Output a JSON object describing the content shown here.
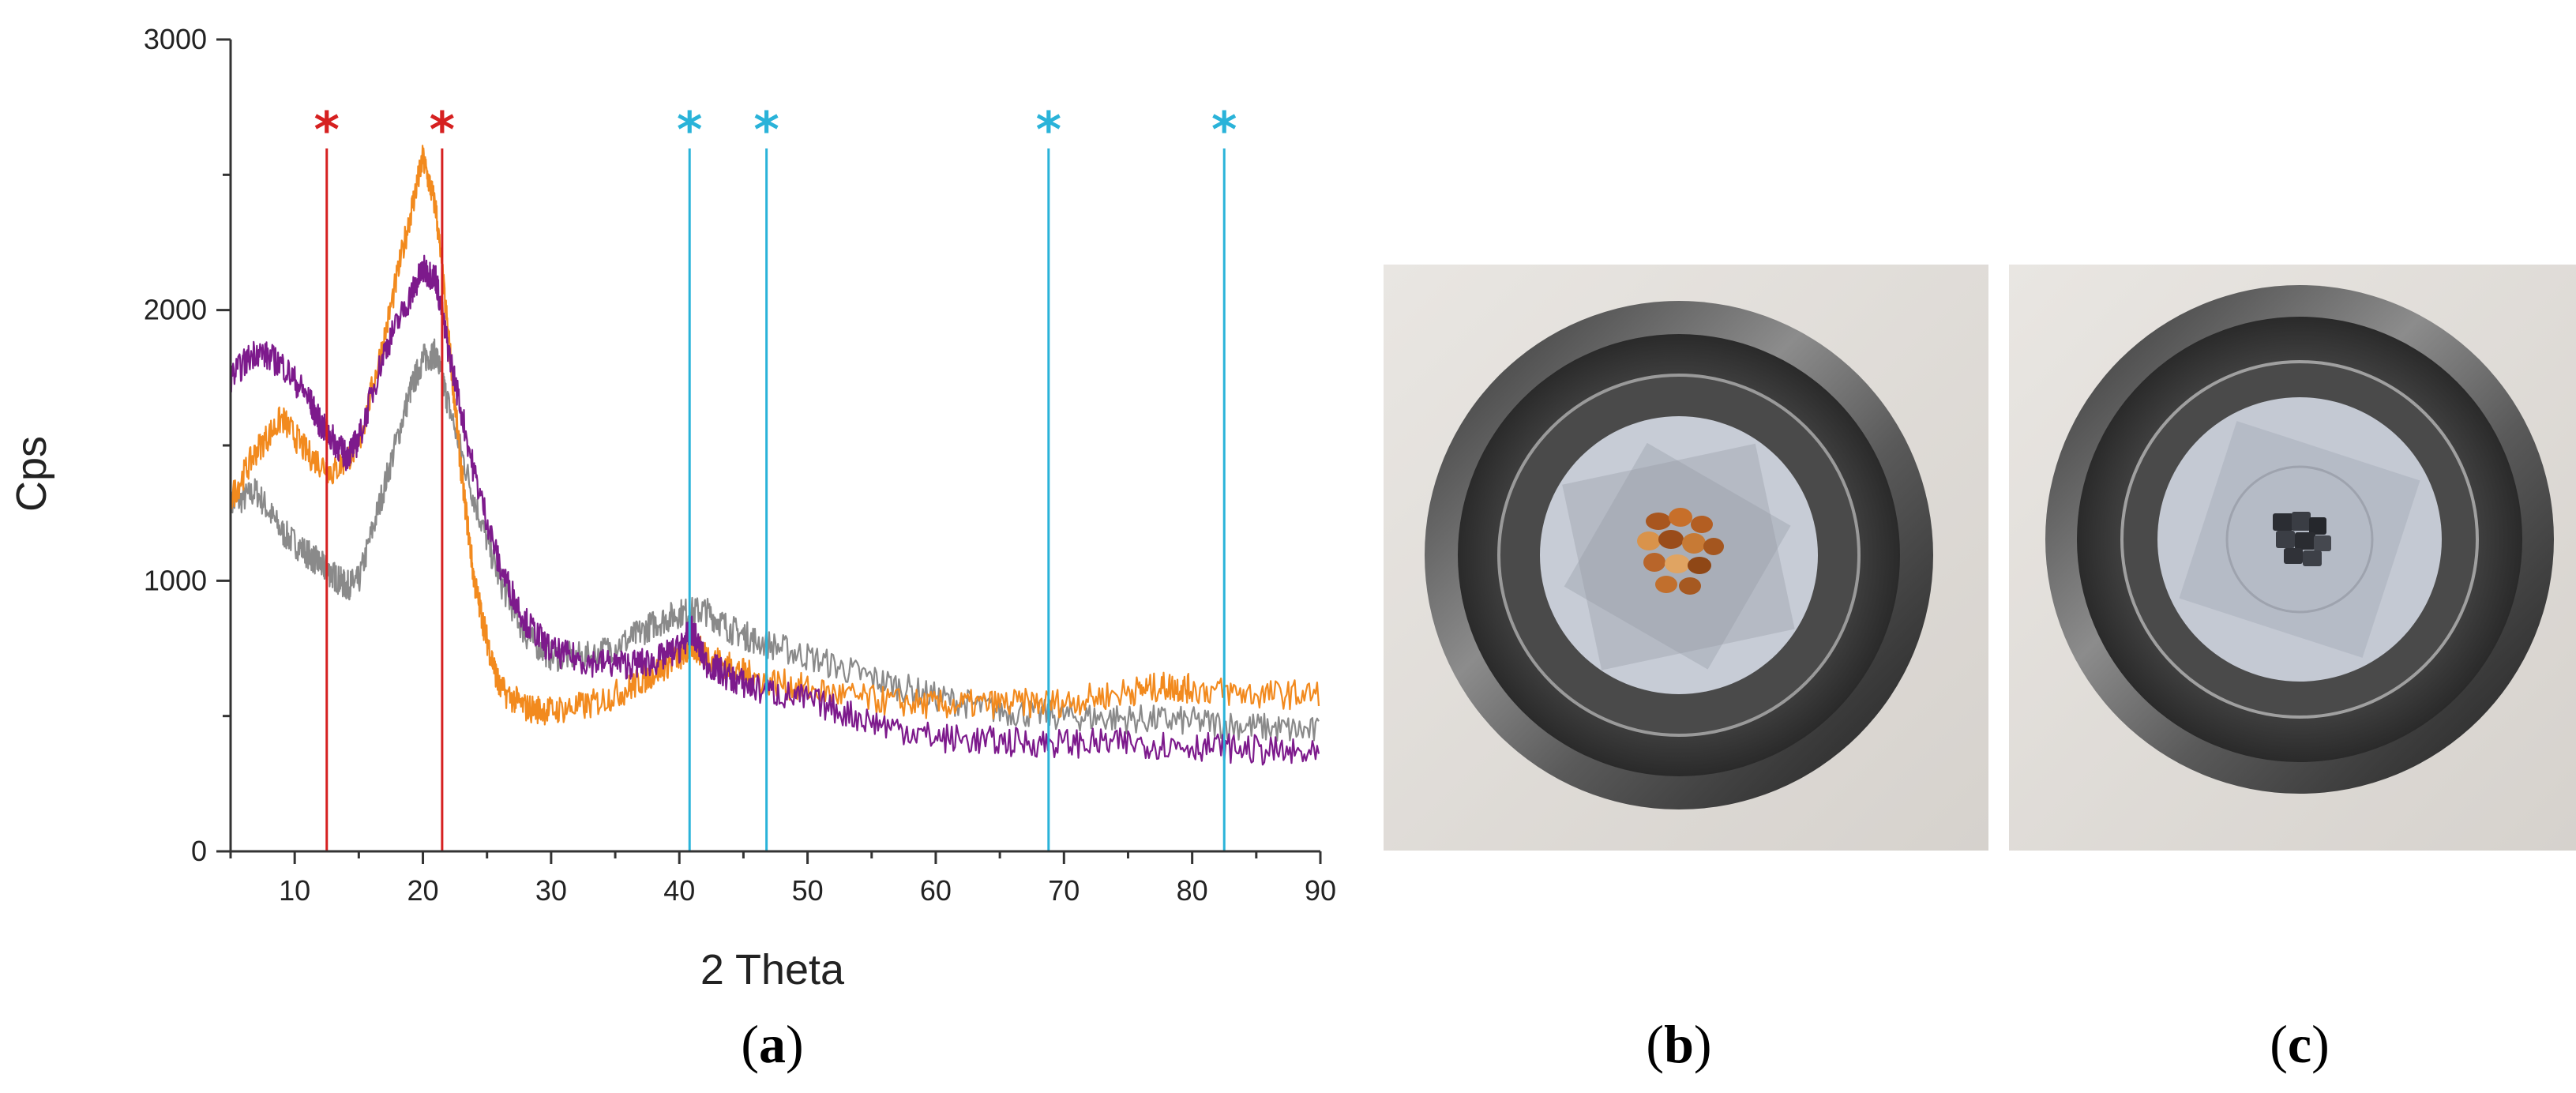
{
  "chart_data": {
    "type": "line",
    "title": "",
    "xlabel": "2 Theta",
    "ylabel": "Cps",
    "xlim": [
      5,
      90
    ],
    "ylim": [
      0,
      3000
    ],
    "xticks": [
      10,
      20,
      30,
      40,
      50,
      60,
      70,
      80,
      90
    ],
    "yticks": [
      0,
      1000,
      2000,
      3000
    ],
    "grid": false,
    "legend": "none",
    "series": [
      {
        "color": "#f28a1e",
        "points": [
          [
            5,
            1300
          ],
          [
            7,
            1480
          ],
          [
            9,
            1600
          ],
          [
            11,
            1470
          ],
          [
            13,
            1400
          ],
          [
            15,
            1500
          ],
          [
            17,
            1900
          ],
          [
            19,
            2350
          ],
          [
            20,
            2560
          ],
          [
            21,
            2380
          ],
          [
            22,
            1900
          ],
          [
            23,
            1400
          ],
          [
            24,
            1000
          ],
          [
            25,
            780
          ],
          [
            26,
            600
          ],
          [
            28,
            530
          ],
          [
            30,
            520
          ],
          [
            33,
            540
          ],
          [
            36,
            600
          ],
          [
            38,
            660
          ],
          [
            40,
            720
          ],
          [
            41,
            760
          ],
          [
            42,
            730
          ],
          [
            44,
            680
          ],
          [
            46,
            640
          ],
          [
            50,
            600
          ],
          [
            55,
            560
          ],
          [
            60,
            540
          ],
          [
            65,
            545
          ],
          [
            70,
            550
          ],
          [
            75,
            590
          ],
          [
            78,
            610
          ],
          [
            80,
            600
          ],
          [
            85,
            580
          ],
          [
            90,
            580
          ]
        ]
      },
      {
        "color": "#7d1a8c",
        "points": [
          [
            5,
            1750
          ],
          [
            7,
            1850
          ],
          [
            9,
            1800
          ],
          [
            11,
            1680
          ],
          [
            12,
            1580
          ],
          [
            13,
            1520
          ],
          [
            14,
            1460
          ],
          [
            15,
            1520
          ],
          [
            17,
            1850
          ],
          [
            19,
            2050
          ],
          [
            20,
            2150
          ],
          [
            21,
            2120
          ],
          [
            22,
            1850
          ],
          [
            24,
            1400
          ],
          [
            26,
            1050
          ],
          [
            28,
            850
          ],
          [
            30,
            740
          ],
          [
            33,
            700
          ],
          [
            36,
            690
          ],
          [
            38,
            700
          ],
          [
            40,
            750
          ],
          [
            41,
            820
          ],
          [
            42,
            700
          ],
          [
            44,
            640
          ],
          [
            46,
            600
          ],
          [
            50,
            560
          ],
          [
            55,
            480
          ],
          [
            60,
            420
          ],
          [
            65,
            405
          ],
          [
            70,
            400
          ],
          [
            75,
            400
          ],
          [
            80,
            390
          ],
          [
            85,
            375
          ],
          [
            90,
            350
          ]
        ]
      },
      {
        "color": "#8a8a8a",
        "points": [
          [
            5,
            1280
          ],
          [
            7,
            1330
          ],
          [
            9,
            1180
          ],
          [
            11,
            1100
          ],
          [
            12,
            1060
          ],
          [
            13,
            1020
          ],
          [
            14,
            980
          ],
          [
            15,
            1000
          ],
          [
            17,
            1350
          ],
          [
            19,
            1700
          ],
          [
            20,
            1820
          ],
          [
            21,
            1840
          ],
          [
            22,
            1650
          ],
          [
            24,
            1300
          ],
          [
            26,
            1000
          ],
          [
            28,
            800
          ],
          [
            30,
            720
          ],
          [
            33,
            720
          ],
          [
            36,
            780
          ],
          [
            38,
            840
          ],
          [
            40,
            880
          ],
          [
            42,
            890
          ],
          [
            44,
            820
          ],
          [
            46,
            780
          ],
          [
            50,
            720
          ],
          [
            55,
            640
          ],
          [
            60,
            570
          ],
          [
            65,
            520
          ],
          [
            70,
            500
          ],
          [
            75,
            490
          ],
          [
            80,
            480
          ],
          [
            85,
            460
          ],
          [
            90,
            440
          ]
        ]
      }
    ],
    "markers": [
      {
        "x": 12.5,
        "label": "*",
        "color": "#d62020"
      },
      {
        "x": 21.5,
        "label": "*",
        "color": "#d62020"
      },
      {
        "x": 40.8,
        "label": "*",
        "color": "#2ab3d9"
      },
      {
        "x": 46.8,
        "label": "*",
        "color": "#2ab3d9"
      },
      {
        "x": 68.8,
        "label": "*",
        "color": "#2ab3d9"
      },
      {
        "x": 82.5,
        "label": "*",
        "color": "#2ab3d9"
      }
    ]
  },
  "panels": {
    "a": {
      "letter": "a",
      "open": "(",
      "close": ")"
    },
    "b": {
      "letter": "b",
      "open": "(",
      "close": ")"
    },
    "c": {
      "letter": "c",
      "open": "(",
      "close": ")"
    }
  }
}
